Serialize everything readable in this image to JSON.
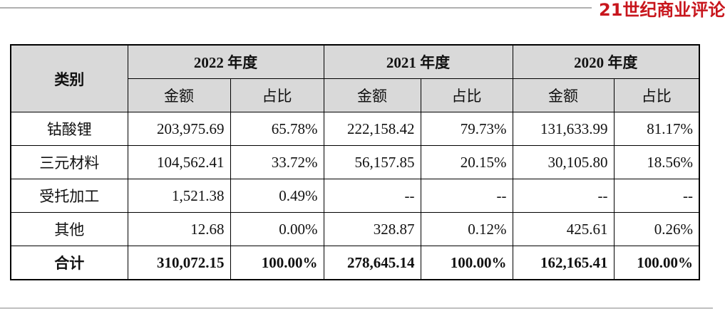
{
  "brand": "21世纪商业评论",
  "table": {
    "header": {
      "category": "类别",
      "years": [
        "2022 年度",
        "2021 年度",
        "2020 年度"
      ],
      "sub": [
        "金额",
        "占比",
        "金额",
        "占比",
        "金额",
        "占比"
      ]
    },
    "rows": [
      [
        "钴酸锂",
        "203,975.69",
        "65.78%",
        "222,158.42",
        "79.73%",
        "131,633.99",
        "81.17%"
      ],
      [
        "三元材料",
        "104,562.41",
        "33.72%",
        "56,157.85",
        "20.15%",
        "30,105.80",
        "18.56%"
      ],
      [
        "受托加工",
        "1,521.38",
        "0.49%",
        "--",
        "--",
        "--",
        "--"
      ],
      [
        "其他",
        "12.68",
        "0.00%",
        "328.87",
        "0.12%",
        "425.61",
        "0.26%"
      ],
      [
        "合计",
        "310,072.15",
        "100.00%",
        "278,645.14",
        "100.00%",
        "162,165.41",
        "100.00%"
      ]
    ]
  }
}
